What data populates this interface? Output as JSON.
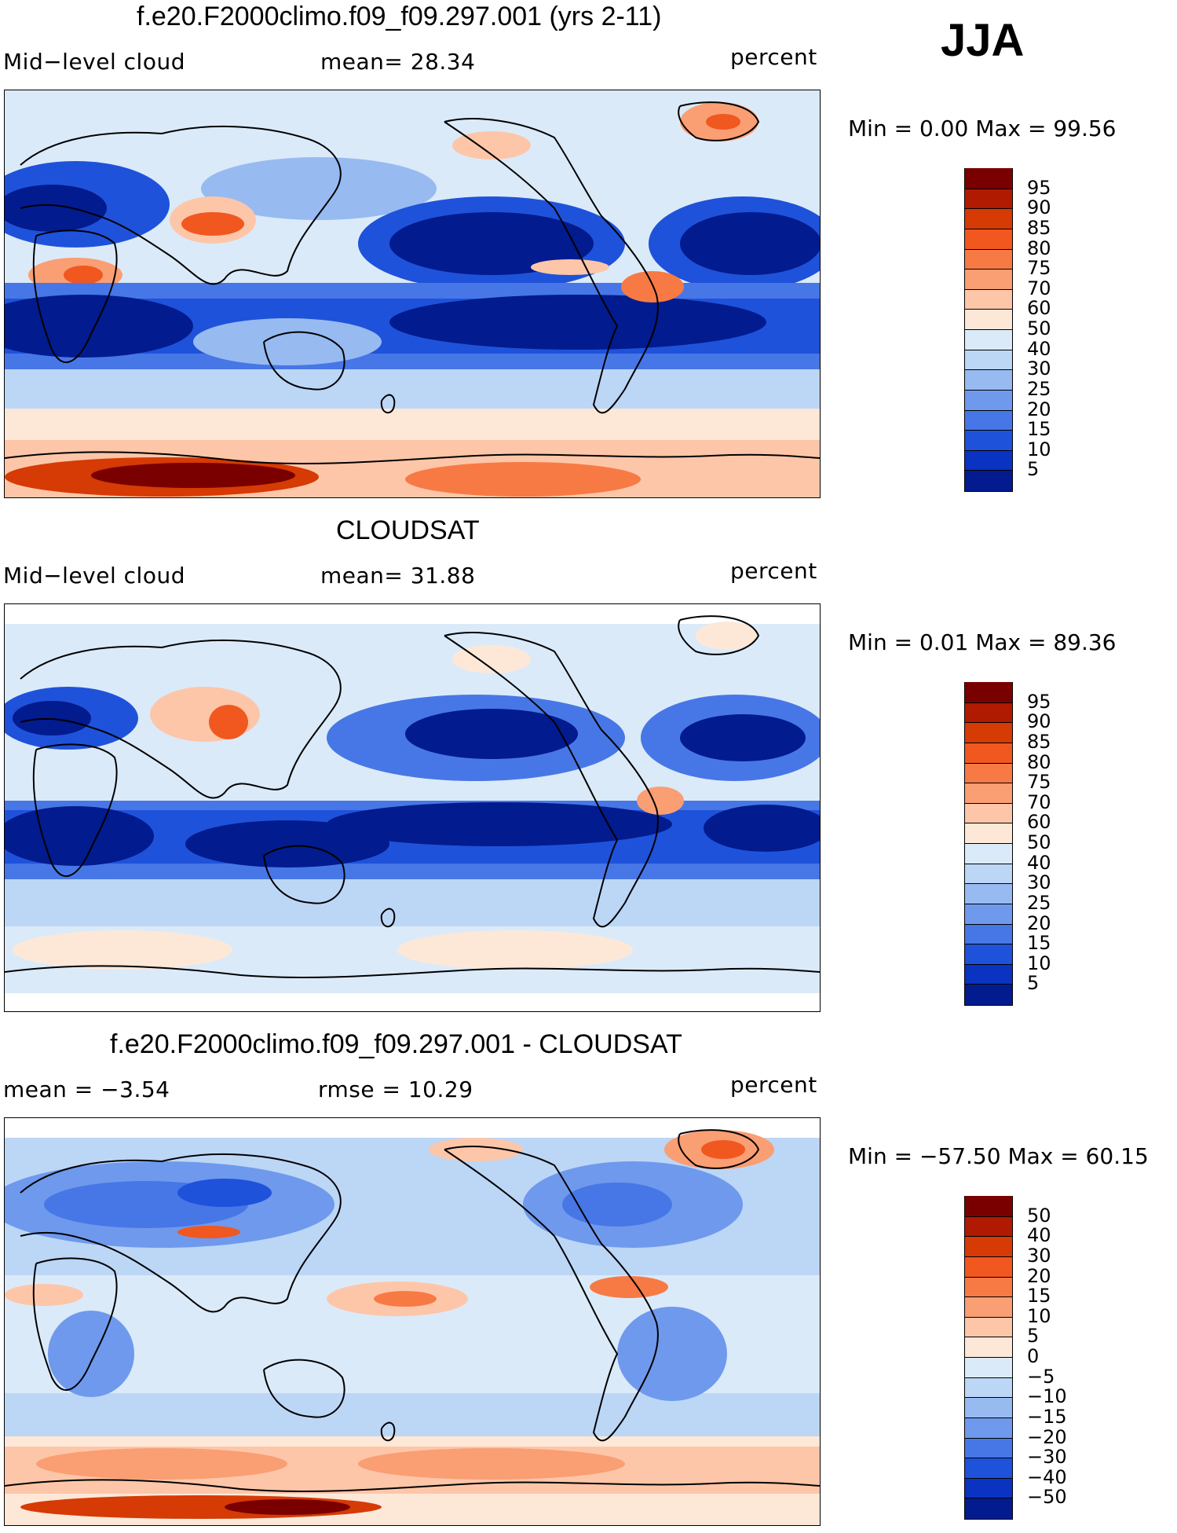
{
  "season": "JJA",
  "panels": [
    {
      "title": "f.e20.F2000climo.f09_f09.297.001 (yrs 2-11)",
      "left_label": "Mid−level cloud",
      "mid_label": "mean=   28.34",
      "right_label": "percent",
      "min_max": "Min =     0.00  Max =    99.56",
      "type": "model"
    },
    {
      "title": "CLOUDSAT",
      "left_label": "Mid−level cloud",
      "mid_label": "mean=   31.88",
      "right_label": "percent",
      "min_max": "Min =     0.01  Max =    89.36",
      "type": "obs"
    },
    {
      "title": "f.e20.F2000climo.f09_f09.297.001 - CLOUDSAT",
      "left_label": "mean =   −3.54",
      "mid_label": "rmse =    10.29",
      "right_label": "percent",
      "min_max": "Min =  −57.50  Max =    60.15",
      "type": "diff"
    }
  ],
  "colorbar_abs": {
    "labels": [
      "95",
      "90",
      "85",
      "80",
      "75",
      "70",
      "60",
      "50",
      "40",
      "30",
      "25",
      "20",
      "15",
      "10",
      "5"
    ],
    "colors": [
      "#7a0000",
      "#b01a00",
      "#d63a05",
      "#f0581f",
      "#f77a45",
      "#fa9e73",
      "#fdc6a8",
      "#fde8d8",
      "#dbeaf9",
      "#bcd6f6",
      "#97baf1",
      "#6f99ec",
      "#4777e6",
      "#1f52da",
      "#0a33c2",
      "#021b8e"
    ]
  },
  "colorbar_diff": {
    "labels": [
      "50",
      "40",
      "30",
      "20",
      "15",
      "10",
      "5",
      "0",
      "−5",
      "−10",
      "−15",
      "−20",
      "−30",
      "−40",
      "−50"
    ],
    "colors": [
      "#7a0000",
      "#b01a00",
      "#d63a05",
      "#f0581f",
      "#f77a45",
      "#fa9e73",
      "#fdc6a8",
      "#fde8d8",
      "#dbeaf9",
      "#bcd6f6",
      "#97baf1",
      "#6f99ec",
      "#4777e6",
      "#1f52da",
      "#0a33c2",
      "#021b8e"
    ]
  }
}
